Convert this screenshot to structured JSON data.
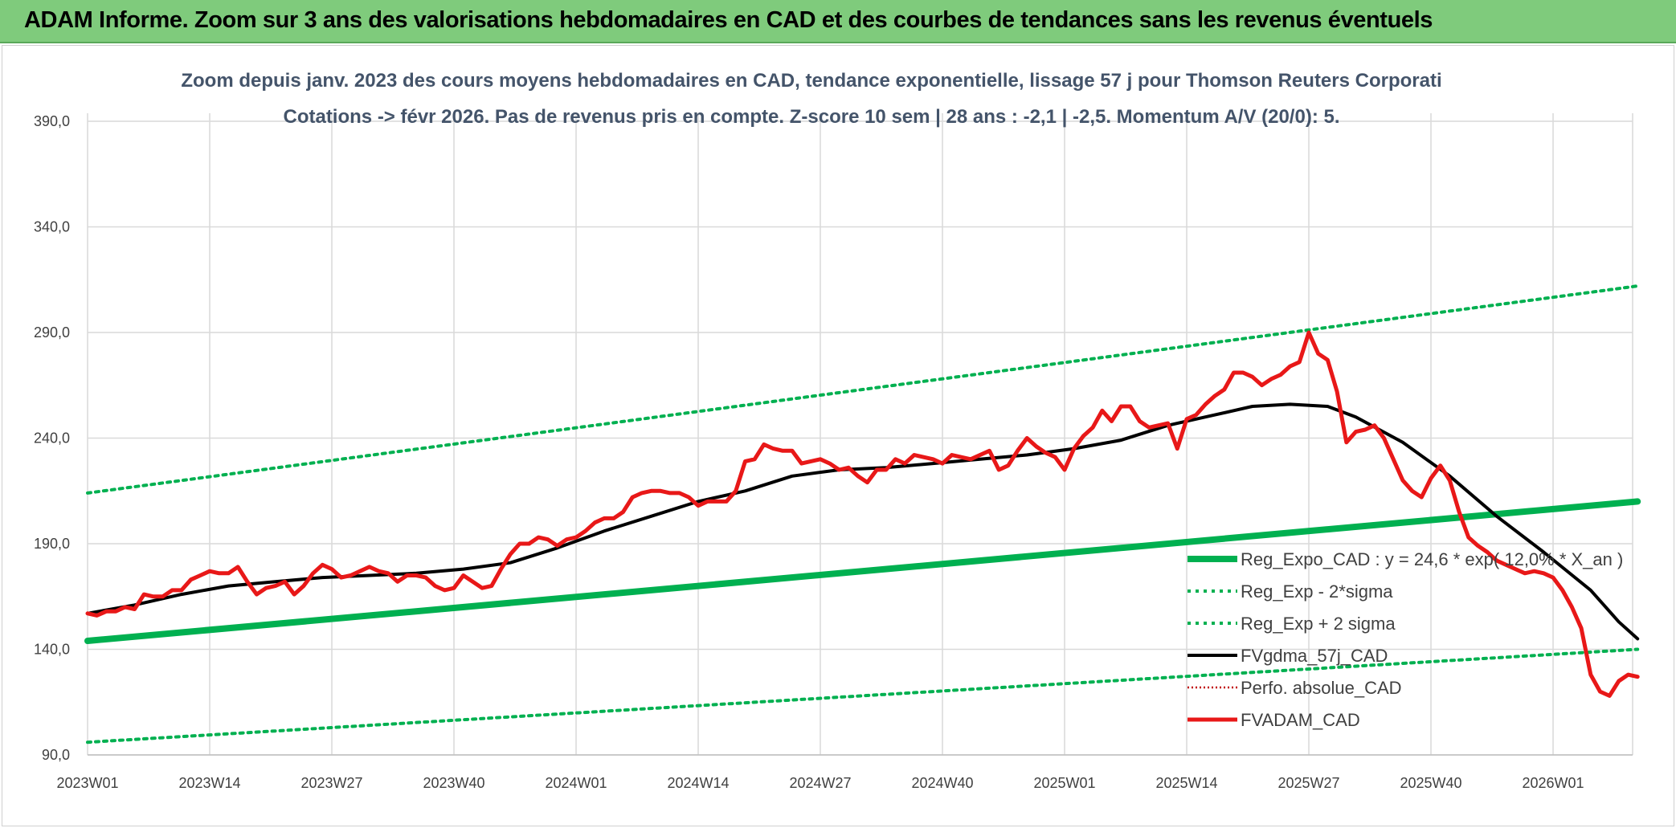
{
  "banner": {
    "title": "ADAM Informe. Zoom sur 3 ans des valorisations hebdomadaires en CAD et des courbes de tendances sans les revenus éventuels"
  },
  "chart_data": {
    "type": "line",
    "title_line1": "Zoom depuis janv. 2023 des cours moyens hebdomadaires en CAD, tendance exponentielle, lissage 57 j pour Thomson Reuters Corporati",
    "title_line2": "Cotations -> févr 2026. Pas de revenus pris en compte. Z-score 10 sem | 28 ans : -2,1 | -2,5. Momentum A/V (20/0): 5.",
    "xlabel": "",
    "ylabel": "",
    "ylim": [
      90,
      390
    ],
    "yticks": [
      "90,0",
      "140,0",
      "190,0",
      "240,0",
      "290,0",
      "340,0",
      "390,0"
    ],
    "xticks": [
      "2023W01",
      "2023W14",
      "2023W27",
      "2023W40",
      "2024W01",
      "2024W14",
      "2024W27",
      "2024W40",
      "2025W01",
      "2025W14",
      "2025W27",
      "2025W40",
      "2026W01"
    ],
    "week_count": 166,
    "grid": true,
    "legend_position": "lower-right",
    "series": [
      {
        "name": "Reg_Expo_CAD : y = 24,6 * exp( 12,0% *  X_an )",
        "style": "solid-thick",
        "color": "#00b050",
        "points": [
          [
            0,
            144
          ],
          [
            165,
            210
          ]
        ]
      },
      {
        "name": "Reg_Exp - 2*sigma",
        "style": "dotted",
        "color": "#00b050",
        "points": [
          [
            0,
            96
          ],
          [
            165,
            140
          ]
        ]
      },
      {
        "name": "Reg_Exp + 2 sigma",
        "style": "dotted",
        "color": "#00b050",
        "points": [
          [
            0,
            214
          ],
          [
            165,
            312
          ]
        ]
      },
      {
        "name": "FVgdma_57j_CAD",
        "style": "solid",
        "color": "#000000",
        "points": [
          [
            0,
            157
          ],
          [
            5,
            161
          ],
          [
            10,
            166
          ],
          [
            15,
            170
          ],
          [
            20,
            172
          ],
          [
            25,
            174
          ],
          [
            30,
            175
          ],
          [
            35,
            176
          ],
          [
            40,
            178
          ],
          [
            45,
            181
          ],
          [
            50,
            188
          ],
          [
            55,
            196
          ],
          [
            60,
            203
          ],
          [
            65,
            210
          ],
          [
            70,
            215
          ],
          [
            75,
            222
          ],
          [
            80,
            225
          ],
          [
            85,
            226
          ],
          [
            90,
            228
          ],
          [
            95,
            230
          ],
          [
            100,
            232
          ],
          [
            105,
            235
          ],
          [
            110,
            239
          ],
          [
            115,
            246
          ],
          [
            120,
            251
          ],
          [
            124,
            255
          ],
          [
            128,
            256
          ],
          [
            132,
            255
          ],
          [
            135,
            250
          ],
          [
            140,
            238
          ],
          [
            145,
            222
          ],
          [
            150,
            203
          ],
          [
            155,
            186
          ],
          [
            160,
            168
          ],
          [
            163,
            153
          ],
          [
            165,
            145
          ]
        ]
      },
      {
        "name": "Perfo. absolue_CAD",
        "style": "dotted-thin",
        "color": "#c00000",
        "points": []
      },
      {
        "name": "FVADAM_CAD",
        "style": "solid-thick",
        "color": "#e81818",
        "points": [
          [
            0,
            157
          ],
          [
            1,
            156
          ],
          [
            2,
            158
          ],
          [
            3,
            158
          ],
          [
            4,
            160
          ],
          [
            5,
            159
          ],
          [
            6,
            166
          ],
          [
            7,
            165
          ],
          [
            8,
            165
          ],
          [
            9,
            168
          ],
          [
            10,
            168
          ],
          [
            11,
            173
          ],
          [
            12,
            175
          ],
          [
            13,
            177
          ],
          [
            14,
            176
          ],
          [
            15,
            176
          ],
          [
            16,
            179
          ],
          [
            17,
            172
          ],
          [
            18,
            166
          ],
          [
            19,
            169
          ],
          [
            20,
            170
          ],
          [
            21,
            172
          ],
          [
            22,
            166
          ],
          [
            23,
            170
          ],
          [
            24,
            176
          ],
          [
            25,
            180
          ],
          [
            26,
            178
          ],
          [
            27,
            174
          ],
          [
            28,
            175
          ],
          [
            29,
            177
          ],
          [
            30,
            179
          ],
          [
            31,
            177
          ],
          [
            32,
            176
          ],
          [
            33,
            172
          ],
          [
            34,
            175
          ],
          [
            35,
            175
          ],
          [
            36,
            174
          ],
          [
            37,
            170
          ],
          [
            38,
            168
          ],
          [
            39,
            169
          ],
          [
            40,
            175
          ],
          [
            41,
            172
          ],
          [
            42,
            169
          ],
          [
            43,
            170
          ],
          [
            44,
            178
          ],
          [
            45,
            185
          ],
          [
            46,
            190
          ],
          [
            47,
            190
          ],
          [
            48,
            193
          ],
          [
            49,
            192
          ],
          [
            50,
            189
          ],
          [
            51,
            192
          ],
          [
            52,
            193
          ],
          [
            53,
            196
          ],
          [
            54,
            200
          ],
          [
            55,
            202
          ],
          [
            56,
            202
          ],
          [
            57,
            205
          ],
          [
            58,
            212
          ],
          [
            59,
            214
          ],
          [
            60,
            215
          ],
          [
            61,
            215
          ],
          [
            62,
            214
          ],
          [
            63,
            214
          ],
          [
            64,
            212
          ],
          [
            65,
            208
          ],
          [
            66,
            210
          ],
          [
            67,
            210
          ],
          [
            68,
            210
          ],
          [
            69,
            215
          ],
          [
            70,
            229
          ],
          [
            71,
            230
          ],
          [
            72,
            237
          ],
          [
            73,
            235
          ],
          [
            74,
            234
          ],
          [
            75,
            234
          ],
          [
            76,
            228
          ],
          [
            77,
            229
          ],
          [
            78,
            230
          ],
          [
            79,
            228
          ],
          [
            80,
            225
          ],
          [
            81,
            226
          ],
          [
            82,
            222
          ],
          [
            83,
            219
          ],
          [
            84,
            225
          ],
          [
            85,
            225
          ],
          [
            86,
            230
          ],
          [
            87,
            228
          ],
          [
            88,
            232
          ],
          [
            89,
            231
          ],
          [
            90,
            230
          ],
          [
            91,
            228
          ],
          [
            92,
            232
          ],
          [
            93,
            231
          ],
          [
            94,
            230
          ],
          [
            95,
            232
          ],
          [
            96,
            234
          ],
          [
            97,
            225
          ],
          [
            98,
            227
          ],
          [
            99,
            234
          ],
          [
            100,
            240
          ],
          [
            101,
            236
          ],
          [
            102,
            233
          ],
          [
            103,
            231
          ],
          [
            104,
            225
          ],
          [
            105,
            235
          ],
          [
            106,
            241
          ],
          [
            107,
            245
          ],
          [
            108,
            253
          ],
          [
            109,
            248
          ],
          [
            110,
            255
          ],
          [
            111,
            255
          ],
          [
            112,
            248
          ],
          [
            113,
            245
          ],
          [
            114,
            246
          ],
          [
            115,
            247
          ],
          [
            116,
            235
          ],
          [
            117,
            249
          ],
          [
            118,
            251
          ],
          [
            119,
            256
          ],
          [
            120,
            260
          ],
          [
            121,
            263
          ],
          [
            122,
            271
          ],
          [
            123,
            271
          ],
          [
            124,
            269
          ],
          [
            125,
            265
          ],
          [
            126,
            268
          ],
          [
            127,
            270
          ],
          [
            128,
            274
          ],
          [
            129,
            276
          ],
          [
            130,
            290
          ],
          [
            131,
            280
          ],
          [
            132,
            277
          ],
          [
            133,
            262
          ],
          [
            134,
            238
          ],
          [
            135,
            243
          ],
          [
            136,
            244
          ],
          [
            137,
            246
          ],
          [
            138,
            240
          ],
          [
            139,
            230
          ],
          [
            140,
            220
          ],
          [
            141,
            215
          ],
          [
            142,
            212
          ],
          [
            143,
            221
          ],
          [
            144,
            227
          ],
          [
            145,
            220
          ],
          [
            146,
            205
          ],
          [
            147,
            193
          ],
          [
            148,
            189
          ],
          [
            149,
            186
          ],
          [
            150,
            182
          ],
          [
            151,
            180
          ],
          [
            152,
            178
          ],
          [
            153,
            176
          ],
          [
            154,
            177
          ],
          [
            155,
            176
          ],
          [
            156,
            174
          ],
          [
            157,
            168
          ],
          [
            158,
            160
          ],
          [
            159,
            150
          ],
          [
            160,
            128
          ],
          [
            161,
            120
          ],
          [
            162,
            118
          ],
          [
            163,
            125
          ],
          [
            164,
            128
          ],
          [
            165,
            127
          ]
        ]
      }
    ]
  }
}
